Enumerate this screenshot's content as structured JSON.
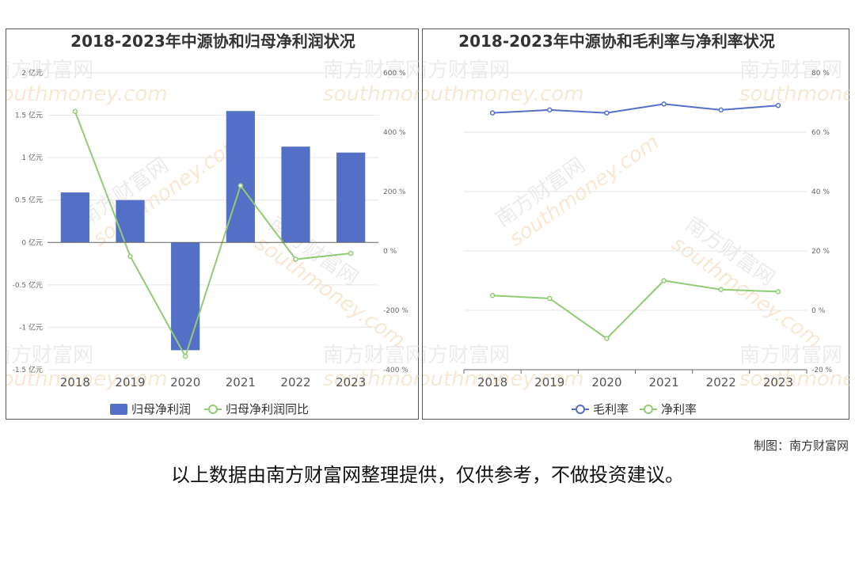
{
  "chart_data": [
    {
      "type": "bar",
      "title": "2018-2023年中源协和归母净利润状况",
      "categories": [
        "2018",
        "2019",
        "2020",
        "2021",
        "2022",
        "2023"
      ],
      "series": [
        {
          "name": "归母净利润",
          "type": "bar",
          "axis": "left",
          "unit": "亿元",
          "values": [
            0.59,
            0.5,
            -1.27,
            1.55,
            1.13,
            1.06
          ],
          "color": "#5470c6"
        },
        {
          "name": "归母净利润同比",
          "type": "line",
          "axis": "right",
          "unit": "%",
          "values": [
            470,
            -18,
            -355,
            220,
            -28,
            -8
          ],
          "color": "#91cc75"
        }
      ],
      "y_left": {
        "min": -1.5,
        "max": 2,
        "ticks": [
          "2 亿元",
          "1.5 亿元",
          "1 亿元",
          "0.5 亿元",
          "0 亿元",
          "-0.5 亿元",
          "-1 亿元",
          "-1.5 亿元"
        ],
        "tick_values": [
          2,
          1.5,
          1,
          0.5,
          0,
          -0.5,
          -1,
          -1.5
        ]
      },
      "y_right": {
        "min": -400,
        "max": 600,
        "ticks": [
          "600 %",
          "400 %",
          "200 %",
          "0 %",
          "-200 %",
          "-400 %"
        ],
        "tick_values": [
          600,
          400,
          200,
          0,
          -200,
          -400
        ]
      },
      "legend_position": "bottom-center",
      "grid": true
    },
    {
      "type": "line",
      "title": "2018-2023年中源协和毛利率与净利率状况",
      "categories": [
        "2018",
        "2019",
        "2020",
        "2021",
        "2022",
        "2023"
      ],
      "series": [
        {
          "name": "毛利率",
          "axis": "right",
          "unit": "%",
          "values": [
            66.5,
            67.5,
            66.5,
            69.5,
            67.5,
            69.0
          ],
          "color": "#5470c6"
        },
        {
          "name": "净利率",
          "axis": "right",
          "unit": "%",
          "values": [
            5.0,
            4.0,
            -9.5,
            10.0,
            7.0,
            6.3
          ],
          "color": "#91cc75"
        }
      ],
      "y_right": {
        "min": -20,
        "max": 80,
        "ticks": [
          "80 %",
          "60 %",
          "40 %",
          "20 %",
          "0 %",
          "-20 %"
        ],
        "tick_values": [
          80,
          60,
          40,
          20,
          0,
          -20
        ]
      },
      "legend_position": "bottom-center",
      "grid": true
    }
  ],
  "watermark": {
    "cn": "南方财富网",
    "en": "southmoney.com"
  },
  "credit": "制图：南方财富网",
  "disclaimer": "以上数据由南方财富网整理提供，仅供参考，不做投资建议。"
}
